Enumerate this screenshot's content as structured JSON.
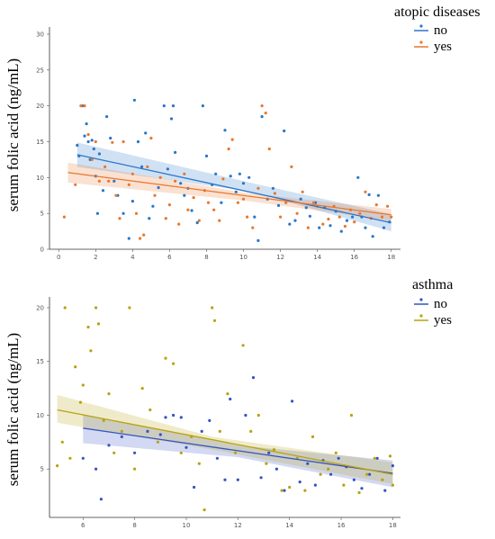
{
  "chart_data": [
    {
      "type": "scatter",
      "ylabel": "serum folic acid (ng/mL)",
      "legend_title": "atopic diseases",
      "legend_placement": "top-right",
      "xticks": [
        0,
        2,
        4,
        6,
        8,
        10,
        12,
        14,
        16,
        18
      ],
      "yticks": [
        0,
        5,
        10,
        15,
        20,
        25,
        30
      ],
      "xlim": [
        -0.5,
        18.5
      ],
      "ylim": [
        0,
        31
      ],
      "series": [
        {
          "name": "no",
          "color": "#2a76c9",
          "fit": {
            "x": [
              1,
              18
            ],
            "y": [
              13.2,
              3.7
            ],
            "ci_lo_start": 11.5,
            "ci_hi_start": 14.9,
            "ci_lo_mid": 8.0,
            "ci_hi_mid": 9.2,
            "x_mid": 10.5,
            "ci_lo_end": 2.5,
            "ci_hi_end": 4.9
          },
          "points": [
            [
              1.0,
              14.5
            ],
            [
              1.1,
              13.0
            ],
            [
              1.3,
              20.0
            ],
            [
              1.4,
              15.8
            ],
            [
              1.5,
              17.5
            ],
            [
              1.6,
              15.0
            ],
            [
              1.7,
              12.5
            ],
            [
              1.8,
              15.2
            ],
            [
              1.9,
              14.0
            ],
            [
              2.0,
              10.2
            ],
            [
              2.1,
              5.0
            ],
            [
              2.2,
              13.3
            ],
            [
              2.4,
              8.2
            ],
            [
              2.6,
              18.5
            ],
            [
              2.8,
              15.5
            ],
            [
              3.0,
              9.5
            ],
            [
              3.2,
              7.5
            ],
            [
              3.5,
              5.0
            ],
            [
              3.8,
              1.5
            ],
            [
              4.0,
              6.7
            ],
            [
              4.1,
              20.8
            ],
            [
              4.3,
              15.0
            ],
            [
              4.5,
              11.5
            ],
            [
              4.7,
              16.2
            ],
            [
              4.9,
              4.3
            ],
            [
              5.1,
              6.0
            ],
            [
              5.4,
              8.6
            ],
            [
              5.7,
              20.0
            ],
            [
              5.9,
              11.2
            ],
            [
              6.1,
              18.2
            ],
            [
              6.2,
              20.0
            ],
            [
              6.3,
              13.5
            ],
            [
              6.6,
              9.2
            ],
            [
              6.8,
              7.5
            ],
            [
              7.0,
              8.5
            ],
            [
              7.2,
              5.4
            ],
            [
              7.5,
              3.7
            ],
            [
              7.8,
              20.0
            ],
            [
              8.0,
              13.0
            ],
            [
              8.3,
              9.0
            ],
            [
              8.5,
              10.5
            ],
            [
              8.8,
              6.5
            ],
            [
              9.0,
              16.6
            ],
            [
              9.3,
              10.2
            ],
            [
              9.6,
              8.0
            ],
            [
              9.8,
              10.5
            ],
            [
              10.0,
              9.2
            ],
            [
              10.3,
              10.0
            ],
            [
              10.6,
              4.5
            ],
            [
              10.8,
              1.2
            ],
            [
              11.0,
              18.5
            ],
            [
              11.3,
              7.0
            ],
            [
              11.6,
              8.5
            ],
            [
              11.9,
              6.1
            ],
            [
              12.2,
              16.5
            ],
            [
              12.5,
              3.5
            ],
            [
              12.8,
              4.0
            ],
            [
              13.1,
              7.0
            ],
            [
              13.4,
              5.8
            ],
            [
              13.6,
              4.6
            ],
            [
              13.9,
              6.5
            ],
            [
              14.1,
              3.0
            ],
            [
              14.4,
              5.8
            ],
            [
              14.7,
              3.3
            ],
            [
              15.0,
              5.3
            ],
            [
              15.3,
              2.5
            ],
            [
              15.6,
              4.0
            ],
            [
              15.9,
              4.5
            ],
            [
              16.2,
              10.0
            ],
            [
              16.4,
              4.5
            ],
            [
              16.6,
              3.0
            ],
            [
              16.8,
              7.6
            ],
            [
              17.0,
              1.8
            ],
            [
              17.3,
              7.5
            ],
            [
              17.6,
              3.0
            ],
            [
              17.9,
              3.8
            ]
          ]
        },
        {
          "name": "yes",
          "color": "#e8772e",
          "fit": {
            "x": [
              0.5,
              18
            ],
            "y": [
              10.7,
              4.8
            ],
            "ci_lo_start": 9.3,
            "ci_hi_start": 12.1,
            "ci_lo_mid": 6.8,
            "ci_hi_mid": 7.9,
            "x_mid": 10.0,
            "ci_lo_end": 4.0,
            "ci_hi_end": 5.6
          },
          "points": [
            [
              0.3,
              4.5
            ],
            [
              0.9,
              9.0
            ],
            [
              1.2,
              20.0
            ],
            [
              1.4,
              20.0
            ],
            [
              1.6,
              16.0
            ],
            [
              1.8,
              12.5
            ],
            [
              2.0,
              15.0
            ],
            [
              2.2,
              9.5
            ],
            [
              2.5,
              11.5
            ],
            [
              2.7,
              9.5
            ],
            [
              2.9,
              14.9
            ],
            [
              3.1,
              7.5
            ],
            [
              3.3,
              4.3
            ],
            [
              3.5,
              15.0
            ],
            [
              3.8,
              9.0
            ],
            [
              4.0,
              10.5
            ],
            [
              4.2,
              5.0
            ],
            [
              4.4,
              1.5
            ],
            [
              4.6,
              2.0
            ],
            [
              4.8,
              11.5
            ],
            [
              5.0,
              15.5
            ],
            [
              5.2,
              7.5
            ],
            [
              5.5,
              10.0
            ],
            [
              5.8,
              4.3
            ],
            [
              6.0,
              6.2
            ],
            [
              6.3,
              9.5
            ],
            [
              6.5,
              3.5
            ],
            [
              6.8,
              10.5
            ],
            [
              7.0,
              5.5
            ],
            [
              7.3,
              7.2
            ],
            [
              7.6,
              4.0
            ],
            [
              7.9,
              8.2
            ],
            [
              8.1,
              6.5
            ],
            [
              8.4,
              5.5
            ],
            [
              8.7,
              4.0
            ],
            [
              8.9,
              9.8
            ],
            [
              9.2,
              14.0
            ],
            [
              9.4,
              15.3
            ],
            [
              9.7,
              6.5
            ],
            [
              10.0,
              7.0
            ],
            [
              10.2,
              4.5
            ],
            [
              10.5,
              3.0
            ],
            [
              10.8,
              8.5
            ],
            [
              11.0,
              20.0
            ],
            [
              11.2,
              19.0
            ],
            [
              11.4,
              14.0
            ],
            [
              11.7,
              7.8
            ],
            [
              12.0,
              4.5
            ],
            [
              12.3,
              6.5
            ],
            [
              12.6,
              11.5
            ],
            [
              12.9,
              5.0
            ],
            [
              13.2,
              8.0
            ],
            [
              13.5,
              3.0
            ],
            [
              13.8,
              6.5
            ],
            [
              14.0,
              6.0
            ],
            [
              14.3,
              3.5
            ],
            [
              14.6,
              4.2
            ],
            [
              14.9,
              6.0
            ],
            [
              15.2,
              4.5
            ],
            [
              15.5,
              3.2
            ],
            [
              15.8,
              5.5
            ],
            [
              16.0,
              3.8
            ],
            [
              16.3,
              5.0
            ],
            [
              16.6,
              8.0
            ],
            [
              16.9,
              4.3
            ],
            [
              17.2,
              6.2
            ],
            [
              17.5,
              4.5
            ],
            [
              17.8,
              6.0
            ],
            [
              18.0,
              4.5
            ]
          ]
        }
      ]
    },
    {
      "type": "scatter",
      "ylabel": "serum folic acid (ng/mL)",
      "legend_title": "asthma",
      "legend_placement": "top-right",
      "xticks": [
        6,
        8,
        10,
        12,
        14,
        16,
        18
      ],
      "yticks": [
        5,
        10,
        15,
        20
      ],
      "xlim": [
        4.7,
        18.3
      ],
      "ylim": [
        0.5,
        21
      ],
      "series": [
        {
          "name": "no",
          "color": "#3553c2",
          "fit": {
            "x": [
              6,
              18
            ],
            "y": [
              8.8,
              4.6
            ],
            "ci_lo_start": 7.4,
            "ci_hi_start": 10.1,
            "ci_lo_mid": 6.1,
            "ci_hi_mid": 7.2,
            "x_mid": 12.0,
            "ci_lo_end": 3.3,
            "ci_hi_end": 5.8
          },
          "points": [
            [
              6.0,
              6.0
            ],
            [
              6.5,
              5.0
            ],
            [
              6.7,
              2.2
            ],
            [
              7.0,
              7.2
            ],
            [
              7.5,
              8.0
            ],
            [
              8.0,
              6.5
            ],
            [
              8.5,
              8.5
            ],
            [
              9.0,
              8.2
            ],
            [
              9.2,
              9.8
            ],
            [
              9.5,
              10.0
            ],
            [
              9.8,
              9.8
            ],
            [
              10.0,
              7.0
            ],
            [
              10.3,
              3.3
            ],
            [
              10.6,
              8.5
            ],
            [
              10.9,
              9.5
            ],
            [
              11.2,
              6.0
            ],
            [
              11.5,
              4.0
            ],
            [
              11.7,
              11.5
            ],
            [
              12.0,
              4.0
            ],
            [
              12.3,
              10.0
            ],
            [
              12.6,
              13.5
            ],
            [
              12.9,
              4.2
            ],
            [
              13.2,
              6.5
            ],
            [
              13.5,
              5.0
            ],
            [
              13.8,
              3.0
            ],
            [
              14.1,
              11.3
            ],
            [
              14.4,
              3.8
            ],
            [
              14.7,
              5.5
            ],
            [
              15.0,
              3.5
            ],
            [
              15.3,
              5.8
            ],
            [
              15.6,
              4.5
            ],
            [
              15.9,
              6.0
            ],
            [
              16.2,
              5.2
            ],
            [
              16.5,
              4.0
            ],
            [
              16.8,
              3.2
            ],
            [
              17.1,
              4.5
            ],
            [
              17.4,
              6.0
            ],
            [
              17.7,
              3.0
            ],
            [
              18.0,
              5.3
            ]
          ]
        },
        {
          "name": "yes",
          "color": "#b8a20e",
          "fit": {
            "x": [
              5,
              18
            ],
            "y": [
              10.5,
              4.5
            ],
            "ci_lo_start": 9.3,
            "ci_hi_start": 11.9,
            "ci_lo_mid": 6.8,
            "ci_hi_mid": 8.0,
            "x_mid": 11.0,
            "ci_lo_end": 3.6,
            "ci_hi_end": 5.6
          },
          "points": [
            [
              5.0,
              5.3
            ],
            [
              5.2,
              7.5
            ],
            [
              5.3,
              20.0
            ],
            [
              5.5,
              6.0
            ],
            [
              5.7,
              14.5
            ],
            [
              5.9,
              11.2
            ],
            [
              6.0,
              12.8
            ],
            [
              6.2,
              18.2
            ],
            [
              6.3,
              16.0
            ],
            [
              6.5,
              20.0
            ],
            [
              6.6,
              18.5
            ],
            [
              6.8,
              9.5
            ],
            [
              7.0,
              12.0
            ],
            [
              7.2,
              6.5
            ],
            [
              7.5,
              8.5
            ],
            [
              7.8,
              20.0
            ],
            [
              8.0,
              5.0
            ],
            [
              8.3,
              12.5
            ],
            [
              8.6,
              10.5
            ],
            [
              8.9,
              7.5
            ],
            [
              9.2,
              15.3
            ],
            [
              9.5,
              14.8
            ],
            [
              9.8,
              6.5
            ],
            [
              10.2,
              8.0
            ],
            [
              10.5,
              5.5
            ],
            [
              10.7,
              1.2
            ],
            [
              11.0,
              20.0
            ],
            [
              11.1,
              18.8
            ],
            [
              11.3,
              8.5
            ],
            [
              11.6,
              12.0
            ],
            [
              11.9,
              6.5
            ],
            [
              12.2,
              16.5
            ],
            [
              12.5,
              8.5
            ],
            [
              12.8,
              10.0
            ],
            [
              13.1,
              5.5
            ],
            [
              13.4,
              6.8
            ],
            [
              13.7,
              3.0
            ],
            [
              14.0,
              3.3
            ],
            [
              14.3,
              6.0
            ],
            [
              14.6,
              3.0
            ],
            [
              14.9,
              8.0
            ],
            [
              15.2,
              4.5
            ],
            [
              15.5,
              5.0
            ],
            [
              15.8,
              6.5
            ],
            [
              16.1,
              3.5
            ],
            [
              16.4,
              10.0
            ],
            [
              16.7,
              2.8
            ],
            [
              17.0,
              4.5
            ],
            [
              17.3,
              6.0
            ],
            [
              17.6,
              4.0
            ],
            [
              17.9,
              6.2
            ],
            [
              18.0,
              3.5
            ]
          ]
        }
      ]
    }
  ]
}
